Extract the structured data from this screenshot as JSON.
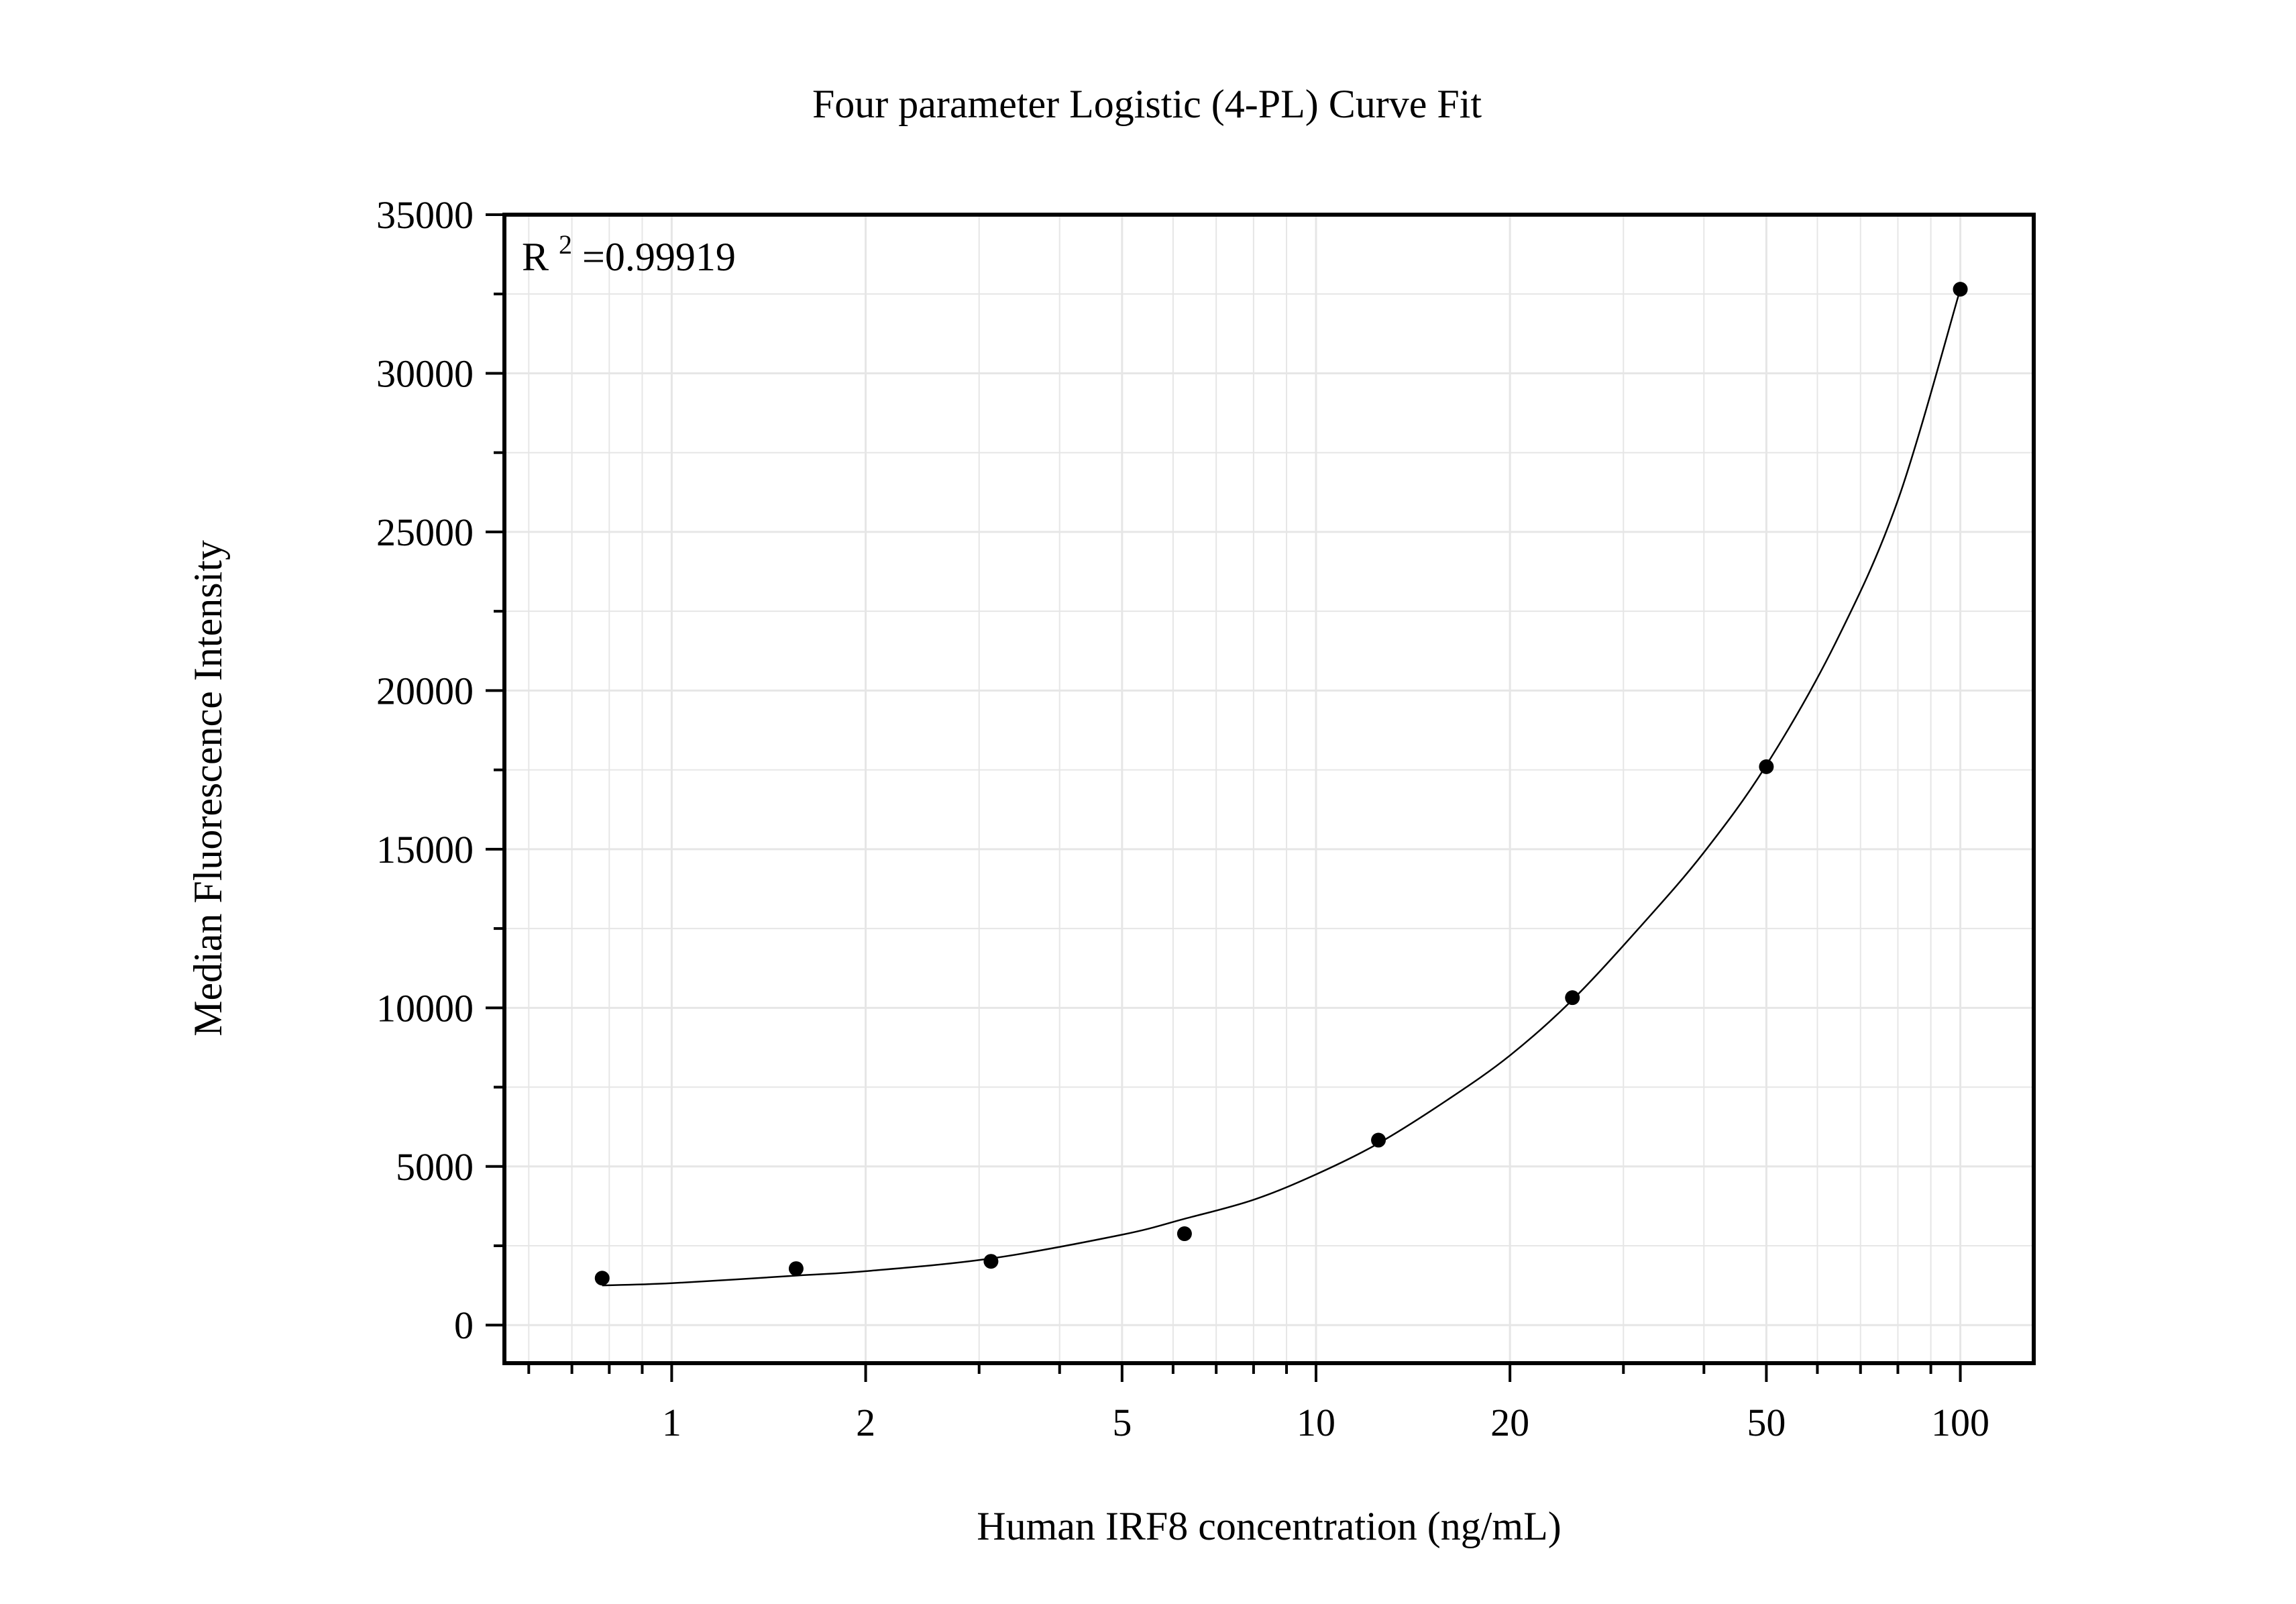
{
  "chart_data": {
    "type": "scatter",
    "title": "Four parameter Logistic (4-PL) Curve Fit",
    "xlabel": "Human IRF8 concentration (ng/mL)",
    "ylabel": "Median Fluorescence Intensity",
    "x_scale": "log",
    "xlim": [
      0.55,
      130
    ],
    "ylim": [
      -1200,
      35000
    ],
    "x_ticks": [
      1,
      2,
      5,
      10,
      20,
      50,
      100
    ],
    "x_tick_labels": [
      "1",
      "2",
      "5",
      "10",
      "20",
      "50",
      "100"
    ],
    "y_ticks": [
      0,
      5000,
      10000,
      15000,
      20000,
      25000,
      30000,
      35000
    ],
    "y_tick_labels": [
      "0",
      "5000",
      "10000",
      "15000",
      "20000",
      "25000",
      "30000",
      "35000"
    ],
    "grid": true,
    "annotation": {
      "base": "R",
      "superscript": "2",
      "rest": "=0.99919"
    },
    "points": [
      {
        "x": 0.78,
        "y": 1480
      },
      {
        "x": 1.56,
        "y": 1780
      },
      {
        "x": 3.13,
        "y": 2010
      },
      {
        "x": 6.25,
        "y": 2880
      },
      {
        "x": 12.5,
        "y": 5830
      },
      {
        "x": 25,
        "y": 10320
      },
      {
        "x": 50,
        "y": 17600
      },
      {
        "x": 100,
        "y": 32650
      }
    ],
    "fit_curve": [
      {
        "x": 0.78,
        "y": 1250
      },
      {
        "x": 1,
        "y": 1320
      },
      {
        "x": 1.56,
        "y": 1560
      },
      {
        "x": 2,
        "y": 1700
      },
      {
        "x": 3.13,
        "y": 2100
      },
      {
        "x": 5,
        "y": 2850
      },
      {
        "x": 6.25,
        "y": 3350
      },
      {
        "x": 8,
        "y": 3950
      },
      {
        "x": 10,
        "y": 4750
      },
      {
        "x": 12.5,
        "y": 5730
      },
      {
        "x": 16,
        "y": 7100
      },
      {
        "x": 20,
        "y": 8500
      },
      {
        "x": 25,
        "y": 10250
      },
      {
        "x": 32,
        "y": 12600
      },
      {
        "x": 40,
        "y": 14900
      },
      {
        "x": 50,
        "y": 17650
      },
      {
        "x": 64,
        "y": 21500
      },
      {
        "x": 80,
        "y": 26000
      },
      {
        "x": 100,
        "y": 32650
      }
    ],
    "colors": {
      "points": "#000000",
      "curve": "#000000",
      "grid": "#e6e6e6",
      "axes": "#000000"
    }
  }
}
